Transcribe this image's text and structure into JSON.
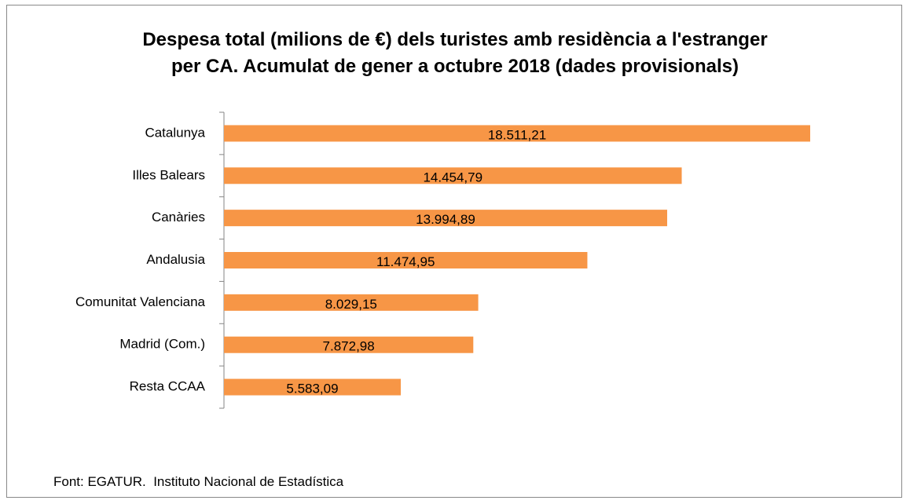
{
  "chart_data": {
    "type": "bar",
    "orientation": "horizontal",
    "title": "Despesa total (milions de €) dels turistes amb residència a l'estranger\nper CA. Acumulat de gener a octubre 2018 (dades provisionals)",
    "categories": [
      "Catalunya",
      "Illes Balears",
      "Canàries",
      "Andalusia",
      "Comunitat Valenciana",
      "Madrid (Com.)",
      "Resta CCAA"
    ],
    "values": [
      18511.21,
      14454.79,
      13994.89,
      11474.95,
      8029.15,
      7872.98,
      5583.09
    ],
    "value_labels": [
      "18.511,21",
      "14.454,79",
      "13.994,89",
      "11.474,95",
      "8.029,15",
      "7.872,98",
      "5.583,09"
    ],
    "color": "#f79646",
    "source": "Font: EGATUR.  Instituto Nacional de Estadística"
  }
}
